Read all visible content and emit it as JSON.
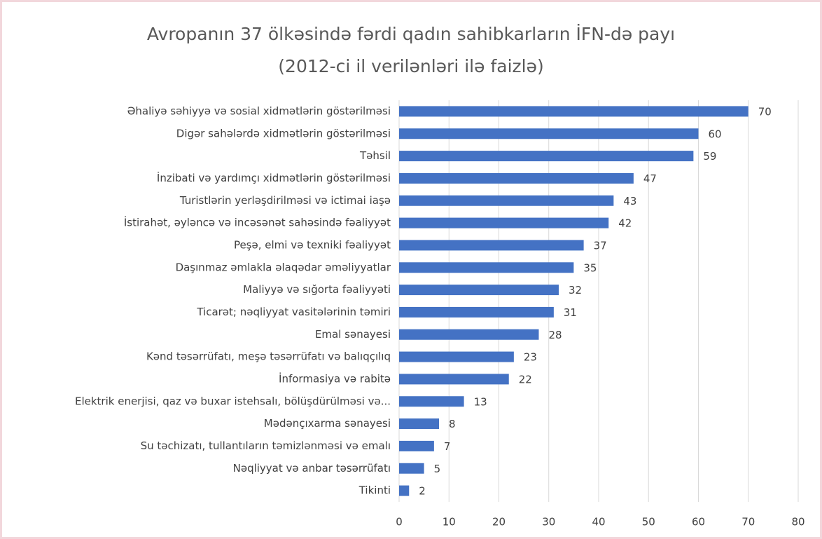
{
  "chart_data": {
    "type": "bar",
    "orientation": "horizontal",
    "title": "Avropanın 37 ölkəsində fərdi qadın sahibkarların İFN-də payı",
    "subtitle": "(2012-ci il verilənləri ilə faizlə)",
    "categories": [
      "Əhaliyə səhiyyə və sosial xidmətlərin göstərilməsi",
      "Digər sahələrdə xidmətlərin göstərilməsi",
      "Təhsil",
      "İnzibati və yardımçı xidmətlərin göstərilməsi",
      "Turistlərin yerləşdirilməsi və ictimai iaşə",
      "İstirahət, əyləncə və incəsənət sahəsində fəaliyyət",
      "Peşə, elmi və texniki fəaliyyət",
      "Daşınmaz əmlakla əlaqədar əməliyyatlar",
      "Maliyyə və sığorta fəaliyyəti",
      "Ticarət; nəqliyyat vasitələrinin təmiri",
      "Emal sənayesi",
      "Kənd təsərrüfatı, meşə təsərrüfatı və balıqçılıq",
      "İnformasiya və rabitə",
      "Elektrik enerjisi, qaz və buxar istehsalı, bölüşdürülməsi və...",
      "Mədənçıxarma sənayesi",
      "Su təchizatı, tullantıların təmizlənməsi və emalı",
      "Nəqliyyat və anbar təsərrüfatı",
      "Tikinti"
    ],
    "values": [
      70,
      60,
      59,
      47,
      43,
      42,
      37,
      35,
      32,
      31,
      28,
      23,
      22,
      13,
      8,
      7,
      5,
      2
    ],
    "color": "#4472c4",
    "xlim": [
      0,
      80
    ],
    "xticks": [
      0,
      10,
      20,
      30,
      40,
      50,
      60,
      70,
      80
    ],
    "grid": true
  }
}
